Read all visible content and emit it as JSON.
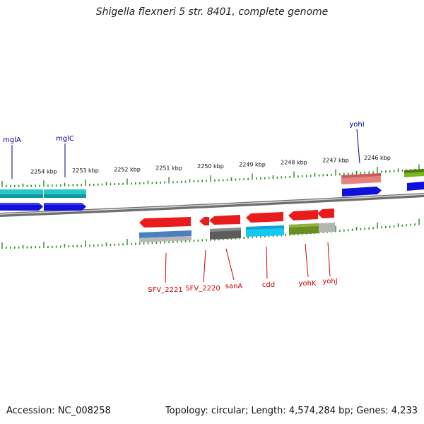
{
  "title": "Shigella flexneri 5 str. 8401, complete genome",
  "accession_label": "Accession: NC_008258",
  "summary_label": "Topology: circular; Length: 4,574,284 bp; Genes: 4,233",
  "colors": {
    "backbone": "#8c8c8c",
    "tick": "#2a8a2a",
    "upper_label": "#00008b",
    "lower_label": "#cc0000"
  },
  "scale_labels": [
    {
      "kb": 2254,
      "text": "2254 kbp"
    },
    {
      "kb": 2253,
      "text": "2253 kbp"
    },
    {
      "kb": 2252,
      "text": "2252 kbp"
    },
    {
      "kb": 2251,
      "text": "2251 kbp"
    },
    {
      "kb": 2250,
      "text": "2250 kbp"
    },
    {
      "kb": 2249,
      "text": "2249 kbp"
    },
    {
      "kb": 2248,
      "text": "2248 kbp"
    },
    {
      "kb": 2247,
      "text": "2247 kbp"
    },
    {
      "kb": 2246,
      "text": "2246 kbp"
    }
  ],
  "upper_genes": [
    {
      "name": "mglA",
      "strand": "forward",
      "category_color": "#22c4c4",
      "label_color": "#00008b"
    },
    {
      "name": "mglC",
      "strand": "forward",
      "category_color": "#22c4c4",
      "label_color": "#00008b"
    },
    {
      "name": "yohI",
      "strand": "forward",
      "category_color": "#e98080",
      "label_color": "#00008b"
    }
  ],
  "lower_genes": [
    {
      "name": "SFV_2221",
      "strand": "reverse",
      "category_color": "#4a7fc0",
      "label_color": "#cc0000"
    },
    {
      "name": "SFV_2220",
      "strand": "reverse",
      "category_color": "#e82020",
      "label_color": "#cc0000"
    },
    {
      "name": "sanA",
      "strand": "reverse",
      "category_color": "#5c5c5c",
      "label_color": "#cc0000"
    },
    {
      "name": "cdd",
      "strand": "reverse",
      "category_color": "#18c8f0",
      "label_color": "#cc0000"
    },
    {
      "name": "yohK",
      "strand": "reverse",
      "category_color": "#6b8e23",
      "label_color": "#cc0000"
    },
    {
      "name": "yohJ",
      "strand": "reverse",
      "category_color": "#b4b4b4",
      "label_color": "#cc0000"
    }
  ]
}
